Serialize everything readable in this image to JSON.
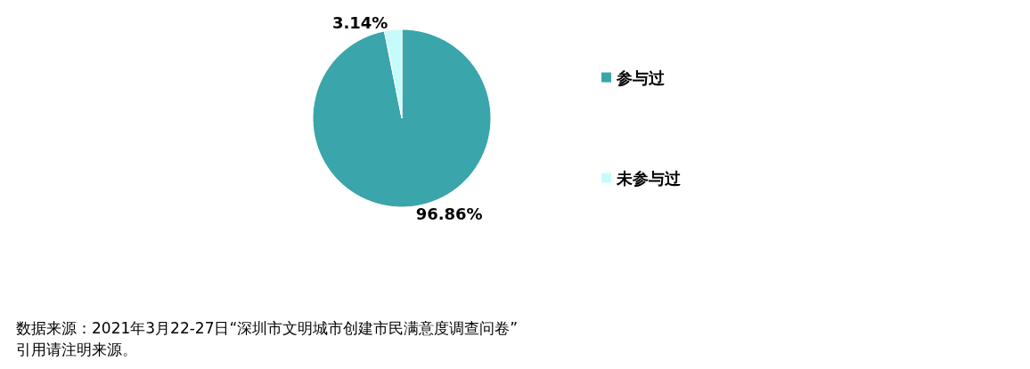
{
  "chart_data": {
    "type": "pie",
    "categories": [
      "参与过",
      "未参与过"
    ],
    "values": [
      96.86,
      3.14
    ],
    "colors": [
      "#3aa5aa",
      "#c6fbfb"
    ],
    "value_labels": [
      "96.86%",
      "3.14%"
    ],
    "legend": "right",
    "annotations": [
      "数据来源：2021年3月22-27日“深圳市文明城市创建市民满意度调查问卷”",
      "引用请注明来源。"
    ]
  }
}
